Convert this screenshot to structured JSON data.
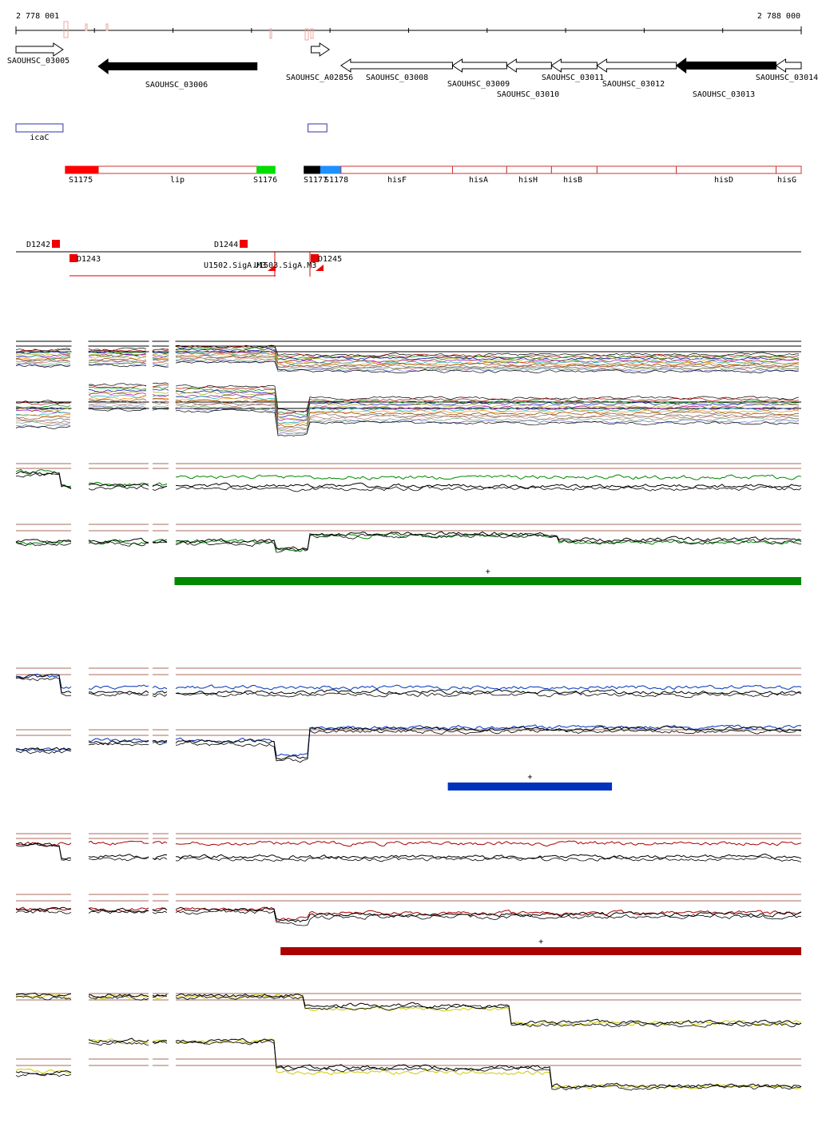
{
  "ruler": {
    "start_label": "2 778 001",
    "end_label": "2 788 000",
    "start": 2778001,
    "end": 2788000,
    "tick_step": 1000
  },
  "genes": [
    {
      "id": "SAOUHSC_03005",
      "start": 2778001,
      "end": 2778600,
      "strand": "+",
      "fill": "white",
      "row": 0
    },
    {
      "id": "SAOUHSC_03006",
      "start": 2779050,
      "end": 2781070,
      "strand": "-",
      "fill": "black",
      "row": 0
    },
    {
      "id": "SAOUHSC_A02856",
      "start": 2781760,
      "end": 2781990,
      "strand": "+",
      "fill": "white",
      "row": 0
    },
    {
      "id": "SAOUHSC_03008",
      "start": 2782140,
      "end": 2783560,
      "strand": "-",
      "fill": "white",
      "row": 1
    },
    {
      "id": "SAOUHSC_03009",
      "start": 2783560,
      "end": 2784250,
      "strand": "-",
      "fill": "white",
      "row": 1
    },
    {
      "id": "SAOUHSC_03010",
      "start": 2784250,
      "end": 2784820,
      "strand": "-",
      "fill": "white",
      "row": 1
    },
    {
      "id": "SAOUHSC_03011",
      "start": 2784820,
      "end": 2785400,
      "strand": "-",
      "fill": "white",
      "row": 1
    },
    {
      "id": "SAOUHSC_03012",
      "start": 2785400,
      "end": 2786410,
      "strand": "-",
      "fill": "white",
      "row": 1
    },
    {
      "id": "SAOUHSC_03013",
      "start": 2786410,
      "end": 2787680,
      "strand": "-",
      "fill": "black",
      "row": 1
    },
    {
      "id": "SAOUHSC_03014",
      "start": 2787680,
      "end": 2788000,
      "strand": "-",
      "fill": "white",
      "row": 1
    }
  ],
  "boxes": [
    {
      "label": "icaC",
      "start": 2778001,
      "end": 2778600,
      "color": "#3333aa"
    },
    {
      "label": "",
      "start": 2781720,
      "end": 2781960,
      "color": "#3333aa"
    }
  ],
  "segments": [
    {
      "label": "S1175",
      "start": 2778630,
      "end": 2779050,
      "fill": "#ff0000"
    },
    {
      "label": "lip",
      "start": 2779050,
      "end": 2781070,
      "fill": "#ffffff"
    },
    {
      "label": "S1176",
      "start": 2781070,
      "end": 2781300,
      "fill": "#00dd00"
    },
    {
      "label": "S1177",
      "start": 2781670,
      "end": 2781880,
      "fill": "#000000"
    },
    {
      "label": "S1178",
      "start": 2781880,
      "end": 2782140,
      "fill": "#1e90ff"
    },
    {
      "label": "hisF",
      "start": 2782140,
      "end": 2783560,
      "fill": "#ffffff"
    },
    {
      "label": "hisA",
      "start": 2783560,
      "end": 2784250,
      "fill": "#ffffff"
    },
    {
      "label": "hisH",
      "start": 2784250,
      "end": 2784820,
      "fill": "#ffffff"
    },
    {
      "label": "hisB",
      "start": 2784820,
      "end": 2785400,
      "fill": "#ffffff"
    },
    {
      "label": "",
      "start": 2785400,
      "end": 2786410,
      "fill": "#ffffff"
    },
    {
      "label": "hisD",
      "start": 2786410,
      "end": 2787680,
      "fill": "#ffffff"
    },
    {
      "label": "hisG",
      "start": 2787680,
      "end": 2788000,
      "fill": "#ffffff"
    }
  ],
  "features": [
    {
      "label": "D1242",
      "pos": 2778500,
      "strand": "+"
    },
    {
      "label": "D1243",
      "pos": 2778720,
      "strand": "-"
    },
    {
      "label": "D1244",
      "pos": 2780870,
      "strand": "+"
    },
    {
      "label": "D1245",
      "pos": 2781780,
      "strand": "-"
    },
    {
      "label": "U1502.SigA.M3",
      "pos": 2781210,
      "strand": "-"
    },
    {
      "label": "U1503.SigA.M3",
      "pos": 2781850,
      "strand": "-"
    }
  ],
  "signal_colors": [
    "#008800",
    "#0033bb",
    "#aa0000",
    "#cccc00"
  ],
  "condition_bars": [
    {
      "label": "+",
      "start": 2780020,
      "end": 2788000,
      "color": "#008800"
    },
    {
      "label": "+",
      "start": 2783500,
      "end": 2785590,
      "color": "#0033bb"
    },
    {
      "label": "+",
      "start": 2781370,
      "end": 2788000,
      "color": "#aa0000"
    }
  ]
}
